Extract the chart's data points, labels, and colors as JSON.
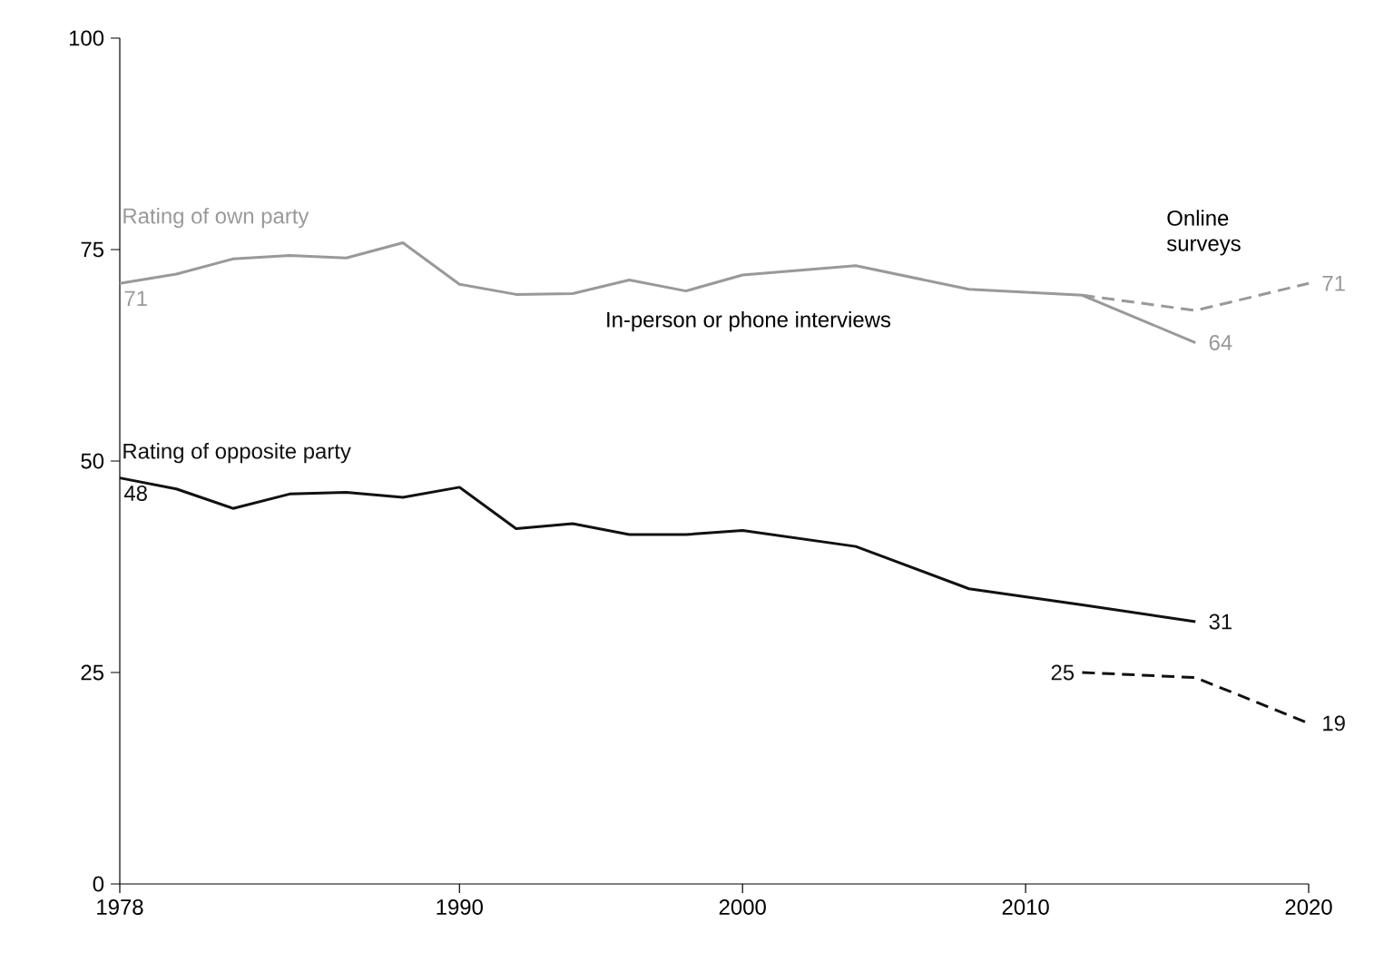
{
  "chart_data": {
    "type": "line",
    "xlim": [
      1978,
      2020
    ],
    "ylim": [
      0,
      100
    ],
    "xticks": [
      1978,
      1990,
      2000,
      2010,
      2020
    ],
    "yticks": [
      0,
      25,
      50,
      75,
      100
    ],
    "grid": false,
    "series": [
      {
        "name": "Rating of own party",
        "color": "#999999",
        "line_style": "solid",
        "x": [
          1978,
          1980,
          1982,
          1984,
          1986,
          1988,
          1990,
          1992,
          1994,
          1996,
          1998,
          2000,
          2004,
          2008,
          2012,
          2016
        ],
        "values": [
          71,
          72.1,
          73.9,
          74.3,
          74.0,
          75.8,
          70.9,
          69.7,
          69.8,
          71.4,
          70.1,
          72.0,
          73.1,
          70.3,
          69.6,
          64
        ],
        "value_labels": [
          "71",
          null,
          null,
          null,
          null,
          null,
          null,
          null,
          null,
          null,
          null,
          null,
          null,
          null,
          null,
          "64"
        ]
      },
      {
        "color": "#999999",
        "line_style": "dashed",
        "x": [
          2012,
          2016,
          2020
        ],
        "values": [
          69.6,
          67.8,
          71
        ],
        "value_labels": [
          null,
          null,
          "71"
        ]
      },
      {
        "name": "Rating of opposite party",
        "color": "#111111",
        "line_style": "solid",
        "x": [
          1978,
          1980,
          1982,
          1984,
          1986,
          1988,
          1990,
          1992,
          1994,
          1996,
          1998,
          2000,
          2004,
          2008,
          2012,
          2016
        ],
        "values": [
          48,
          46.7,
          44.4,
          46.1,
          46.3,
          45.7,
          46.9,
          42.0,
          42.6,
          41.3,
          41.3,
          41.8,
          39.9,
          34.9,
          33.0,
          31
        ],
        "value_labels": [
          "48",
          null,
          null,
          null,
          null,
          null,
          null,
          null,
          null,
          null,
          null,
          null,
          null,
          null,
          null,
          "31"
        ]
      },
      {
        "color": "#111111",
        "line_style": "dashed",
        "x": [
          2012,
          2016,
          2020
        ],
        "values": [
          25,
          24.4,
          19
        ],
        "value_labels": [
          "25",
          null,
          "19"
        ]
      }
    ],
    "annotations": [
      "In-person or phone interviews",
      "Online surveys"
    ]
  }
}
